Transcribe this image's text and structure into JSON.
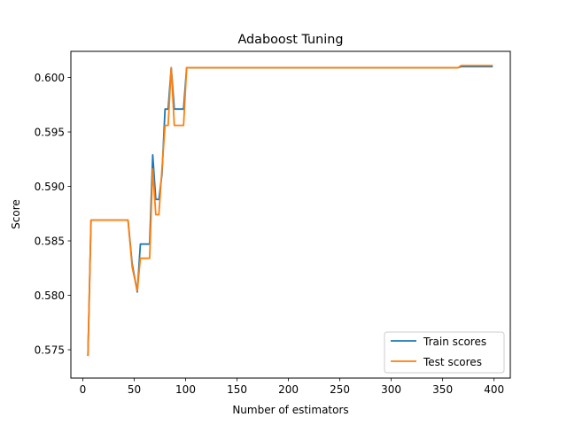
{
  "chart_data": {
    "type": "line",
    "title": "Adaboost Tuning",
    "xlabel": "Number of estimators",
    "ylabel": "Score",
    "xlim": [
      -11.6,
      415.8
    ],
    "ylim": [
      0.5724,
      0.6024
    ],
    "xticks": [
      0,
      50,
      100,
      150,
      200,
      250,
      300,
      350,
      400
    ],
    "xtick_labels": [
      "0",
      "50",
      "100",
      "150",
      "200",
      "250",
      "300",
      "350",
      "400"
    ],
    "yticks": [
      0.575,
      0.58,
      0.585,
      0.59,
      0.595,
      0.6
    ],
    "ytick_labels": [
      "0.575",
      "0.580",
      "0.585",
      "0.590",
      "0.595",
      "0.600"
    ],
    "grid": false,
    "legend_position": "lower-right",
    "series": [
      {
        "name": "Train scores",
        "color": "#1f77b4",
        "x": [
          5,
          8,
          44,
          48,
          53,
          56,
          65,
          68,
          71,
          74,
          77,
          80,
          83,
          86,
          89,
          98,
          101,
          365,
          368,
          398
        ],
        "y": [
          0.5745,
          0.5869,
          0.5869,
          0.5829,
          0.5803,
          0.5847,
          0.5847,
          0.5929,
          0.5888,
          0.5888,
          0.5911,
          0.5971,
          0.5971,
          0.6009,
          0.5971,
          0.5971,
          0.6009,
          0.6009,
          0.601,
          0.601
        ]
      },
      {
        "name": "Test scores",
        "color": "#ff7f0e",
        "x": [
          5,
          8,
          44,
          48,
          53,
          56,
          65,
          68,
          71,
          74,
          77,
          80,
          83,
          86,
          89,
          98,
          101,
          365,
          368,
          398
        ],
        "y": [
          0.5745,
          0.5869,
          0.5869,
          0.5826,
          0.5804,
          0.5834,
          0.5834,
          0.5916,
          0.5874,
          0.5874,
          0.5916,
          0.5956,
          0.5956,
          0.6009,
          0.5956,
          0.5956,
          0.6009,
          0.6009,
          0.6011,
          0.6011
        ]
      }
    ]
  }
}
